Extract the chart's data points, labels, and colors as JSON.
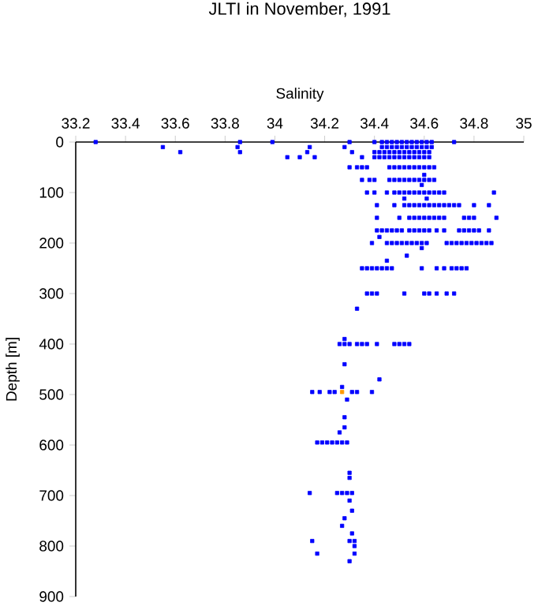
{
  "chart_data": {
    "type": "scatter",
    "title": "JLTI in November, 1991",
    "xlabel": "Salinity",
    "ylabel": "Depth [m]",
    "xlim": [
      33.2,
      35
    ],
    "xticks": [
      33.2,
      33.4,
      33.6,
      33.8,
      34,
      34.2,
      34.4,
      34.6,
      34.8,
      35
    ],
    "ylim": [
      900,
      0
    ],
    "yticks": [
      0,
      100,
      200,
      300,
      400,
      500,
      600,
      700,
      800,
      900
    ],
    "marker": "square",
    "series": [
      {
        "color": "#0000ff",
        "x": [
          33.28,
          33.86,
          33.99,
          34.3,
          34.4,
          34.43,
          34.45,
          34.47,
          34.49,
          34.51,
          34.53,
          34.55,
          34.57,
          34.59,
          34.61,
          34.63,
          34.72
        ],
        "values": [
          0,
          0,
          0,
          0,
          0,
          0,
          0,
          0,
          0,
          0,
          0,
          0,
          0,
          0,
          0,
          0,
          0
        ]
      },
      {
        "color": "#0000ff",
        "x": [
          33.55,
          33.85,
          34.14,
          34.28,
          34.43,
          34.45,
          34.47,
          34.49,
          34.51,
          34.53,
          34.55,
          34.57,
          34.59,
          34.61,
          34.63
        ],
        "values": [
          10,
          10,
          10,
          10,
          10,
          10,
          10,
          10,
          10,
          10,
          10,
          10,
          10,
          10,
          10
        ]
      },
      {
        "color": "#0000ff",
        "x": [
          33.62,
          33.86,
          34.13,
          34.31,
          34.4,
          34.42,
          34.44,
          34.46,
          34.48,
          34.5,
          34.52,
          34.54,
          34.56,
          34.58,
          34.6,
          34.62
        ],
        "values": [
          20,
          20,
          20,
          20,
          20,
          20,
          20,
          20,
          20,
          20,
          20,
          20,
          20,
          20,
          20,
          20
        ]
      },
      {
        "color": "#0000ff",
        "x": [
          34.05,
          34.1,
          34.16,
          34.35,
          34.4,
          34.42,
          34.44,
          34.46,
          34.48,
          34.5,
          34.52,
          34.54,
          34.56,
          34.58,
          34.6,
          34.62
        ],
        "values": [
          30,
          30,
          30,
          30,
          30,
          30,
          30,
          30,
          30,
          30,
          30,
          30,
          30,
          30,
          30,
          30
        ]
      },
      {
        "color": "#0000ff",
        "x": [
          34.3,
          34.33,
          34.35,
          34.37,
          34.46,
          34.48,
          34.5,
          34.52,
          34.54,
          34.56,
          34.58,
          34.6,
          34.62,
          34.64,
          34.6
        ],
        "values": [
          50,
          50,
          50,
          50,
          50,
          50,
          50,
          50,
          50,
          50,
          50,
          50,
          50,
          50,
          65
        ]
      },
      {
        "color": "#0000ff",
        "x": [
          34.35,
          34.38,
          34.4,
          34.46,
          34.48,
          34.5,
          34.52,
          34.54,
          34.56,
          34.58,
          34.6,
          34.62,
          34.64,
          34.59
        ],
        "values": [
          75,
          75,
          75,
          75,
          75,
          75,
          75,
          75,
          75,
          75,
          75,
          75,
          75,
          85
        ]
      },
      {
        "color": "#0000ff",
        "x": [
          34.37,
          34.4,
          34.45,
          34.48,
          34.5,
          34.52,
          34.54,
          34.56,
          34.58,
          34.6,
          34.62,
          34.64,
          34.66,
          34.68,
          34.88,
          34.52,
          34.61
        ],
        "values": [
          100,
          100,
          100,
          100,
          100,
          100,
          100,
          100,
          100,
          100,
          100,
          100,
          100,
          100,
          100,
          112,
          112
        ]
      },
      {
        "color": "#0000ff",
        "x": [
          34.41,
          34.48,
          34.52,
          34.54,
          34.56,
          34.58,
          34.6,
          34.62,
          34.64,
          34.66,
          34.68,
          34.7,
          34.72,
          34.74,
          34.8,
          34.86
        ],
        "values": [
          125,
          125,
          125,
          125,
          125,
          125,
          125,
          125,
          125,
          125,
          125,
          125,
          125,
          125,
          125,
          125
        ]
      },
      {
        "color": "#0000ff",
        "x": [
          34.41,
          34.5,
          34.54,
          34.56,
          34.58,
          34.6,
          34.62,
          34.64,
          34.66,
          34.68,
          34.76,
          34.78,
          34.8,
          34.89
        ],
        "values": [
          150,
          150,
          150,
          150,
          150,
          150,
          150,
          150,
          150,
          150,
          150,
          150,
          150,
          150
        ]
      },
      {
        "color": "#0000ff",
        "x": [
          34.41,
          34.43,
          34.45,
          34.47,
          34.49,
          34.51,
          34.54,
          34.56,
          34.58,
          34.6,
          34.62,
          34.65,
          34.68,
          34.74,
          34.76,
          34.78,
          34.8,
          34.82,
          34.86,
          34.42
        ],
        "values": [
          175,
          175,
          175,
          175,
          175,
          175,
          175,
          175,
          175,
          175,
          175,
          175,
          175,
          175,
          175,
          175,
          175,
          175,
          175,
          188
        ]
      },
      {
        "color": "#0000ff",
        "x": [
          34.39,
          34.45,
          34.47,
          34.49,
          34.51,
          34.53,
          34.55,
          34.57,
          34.59,
          34.61,
          34.69,
          34.71,
          34.73,
          34.75,
          34.77,
          34.79,
          34.81,
          34.83,
          34.85,
          34.87,
          34.59,
          34.53,
          34.45
        ],
        "values": [
          200,
          200,
          200,
          200,
          200,
          200,
          200,
          200,
          200,
          200,
          200,
          200,
          200,
          200,
          200,
          200,
          200,
          200,
          200,
          200,
          210,
          225,
          235
        ]
      },
      {
        "color": "#0000ff",
        "x": [
          34.35,
          34.37,
          34.39,
          34.41,
          34.43,
          34.45,
          34.47,
          34.59,
          34.65,
          34.68,
          34.71,
          34.73,
          34.75,
          34.77
        ],
        "values": [
          250,
          250,
          250,
          250,
          250,
          250,
          250,
          250,
          250,
          250,
          250,
          250,
          250,
          250
        ]
      },
      {
        "color": "#0000ff",
        "x": [
          34.37,
          34.39,
          34.41,
          34.52,
          34.6,
          34.62,
          34.65,
          34.69,
          34.72,
          34.33,
          34.28
        ],
        "values": [
          300,
          300,
          300,
          300,
          300,
          300,
          300,
          300,
          300,
          330,
          390
        ]
      },
      {
        "color": "#0000ff",
        "x": [
          34.26,
          34.28,
          34.3,
          34.33,
          34.35,
          34.37,
          34.41,
          34.48,
          34.5,
          34.52,
          34.54,
          34.28,
          34.42,
          34.27
        ],
        "values": [
          400,
          400,
          400,
          400,
          400,
          400,
          400,
          400,
          400,
          400,
          400,
          440,
          470,
          485
        ]
      },
      {
        "color": "#0000ff",
        "x": [
          34.15,
          34.18,
          34.22,
          34.24,
          34.31,
          34.33,
          34.39,
          34.29,
          34.28,
          34.28,
          34.26
        ],
        "values": [
          495,
          495,
          495,
          495,
          495,
          495,
          495,
          510,
          545,
          565,
          575
        ]
      },
      {
        "color": "#0000ff",
        "x": [
          34.17,
          34.19,
          34.21,
          34.23,
          34.25,
          34.27,
          34.29,
          34.3,
          34.3,
          34.14,
          34.25,
          34.27,
          34.29,
          34.31
        ],
        "values": [
          595,
          595,
          595,
          595,
          595,
          595,
          595,
          655,
          665,
          695,
          695,
          695,
          695,
          695
        ]
      },
      {
        "color": "#0000ff",
        "x": [
          34.3,
          34.31,
          34.28,
          34.27,
          34.31,
          34.15,
          34.3,
          34.32,
          34.32,
          34.17,
          34.32,
          34.3
        ],
        "values": [
          710,
          730,
          745,
          760,
          775,
          790,
          790,
          790,
          800,
          815,
          815,
          830
        ]
      },
      {
        "color": "#ff9900",
        "x": [
          34.27
        ],
        "values": [
          495
        ]
      }
    ]
  }
}
